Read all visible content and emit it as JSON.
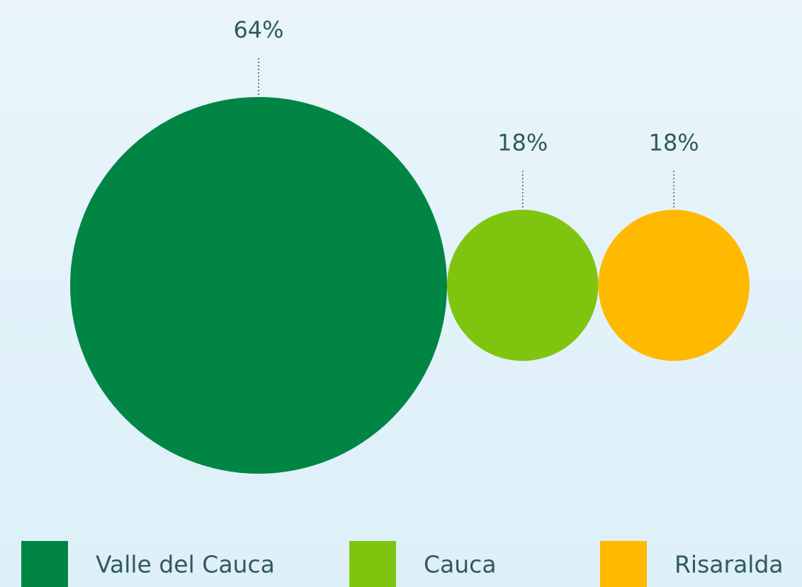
{
  "chart_data": {
    "type": "circles",
    "categories": [
      "Valle del Cauca",
      "Cauca",
      "Risaralda"
    ],
    "values": [
      64,
      18,
      18
    ],
    "value_labels": [
      "64%",
      "18%",
      "18%"
    ],
    "colors": [
      "#008545",
      "#7fc50f",
      "#ffb900"
    ],
    "legend": "bottom"
  }
}
